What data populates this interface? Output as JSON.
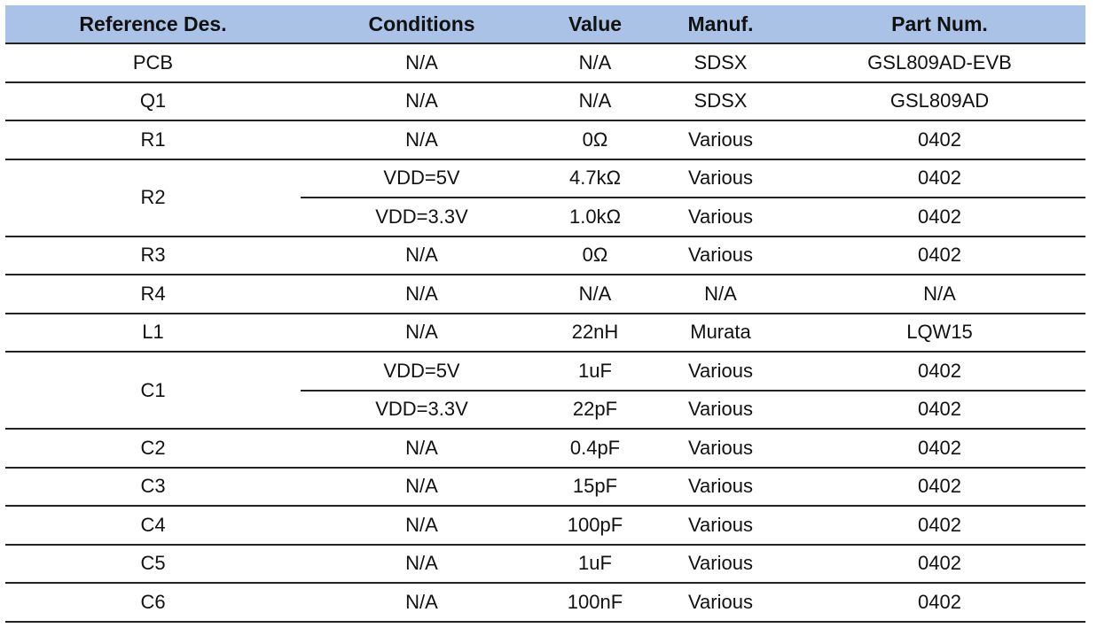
{
  "table": {
    "headers": [
      "Reference Des.",
      "Conditions",
      "Value",
      "Manuf.",
      "Part Num."
    ],
    "rows": [
      {
        "ref": "PCB",
        "sub": [
          {
            "cond": "N/A",
            "value": "N/A",
            "manuf": "SDSX",
            "part": "GSL809AD-EVB"
          }
        ]
      },
      {
        "ref": "Q1",
        "sub": [
          {
            "cond": "N/A",
            "value": "N/A",
            "manuf": "SDSX",
            "part": "GSL809AD"
          }
        ]
      },
      {
        "ref": "R1",
        "sub": [
          {
            "cond": "N/A",
            "value": "0Ω",
            "manuf": "Various",
            "part": "0402"
          }
        ]
      },
      {
        "ref": "R2",
        "sub": [
          {
            "cond": "VDD=5V",
            "value": "4.7kΩ",
            "manuf": "Various",
            "part": "0402"
          },
          {
            "cond": "VDD=3.3V",
            "value": "1.0kΩ",
            "manuf": "Various",
            "part": "0402"
          }
        ]
      },
      {
        "ref": "R3",
        "sub": [
          {
            "cond": "N/A",
            "value": "0Ω",
            "manuf": "Various",
            "part": "0402"
          }
        ]
      },
      {
        "ref": "R4",
        "sub": [
          {
            "cond": "N/A",
            "value": "N/A",
            "manuf": "N/A",
            "part": "N/A"
          }
        ]
      },
      {
        "ref": "L1",
        "sub": [
          {
            "cond": "N/A",
            "value": "22nH",
            "manuf": "Murata",
            "part": "LQW15"
          }
        ]
      },
      {
        "ref": "C1",
        "sub": [
          {
            "cond": "VDD=5V",
            "value": "1uF",
            "manuf": "Various",
            "part": "0402"
          },
          {
            "cond": "VDD=3.3V",
            "value": "22pF",
            "manuf": "Various",
            "part": "0402"
          }
        ]
      },
      {
        "ref": "C2",
        "sub": [
          {
            "cond": "N/A",
            "value": "0.4pF",
            "manuf": "Various",
            "part": "0402"
          }
        ]
      },
      {
        "ref": "C3",
        "sub": [
          {
            "cond": "N/A",
            "value": "15pF",
            "manuf": "Various",
            "part": "0402"
          }
        ]
      },
      {
        "ref": "C4",
        "sub": [
          {
            "cond": "N/A",
            "value": "100pF",
            "manuf": "Various",
            "part": "0402"
          }
        ]
      },
      {
        "ref": "C5",
        "sub": [
          {
            "cond": "N/A",
            "value": "1uF",
            "manuf": "Various",
            "part": "0402"
          }
        ]
      },
      {
        "ref": "C6",
        "sub": [
          {
            "cond": "N/A",
            "value": "100nF",
            "manuf": "Various",
            "part": "0402"
          }
        ]
      }
    ]
  }
}
